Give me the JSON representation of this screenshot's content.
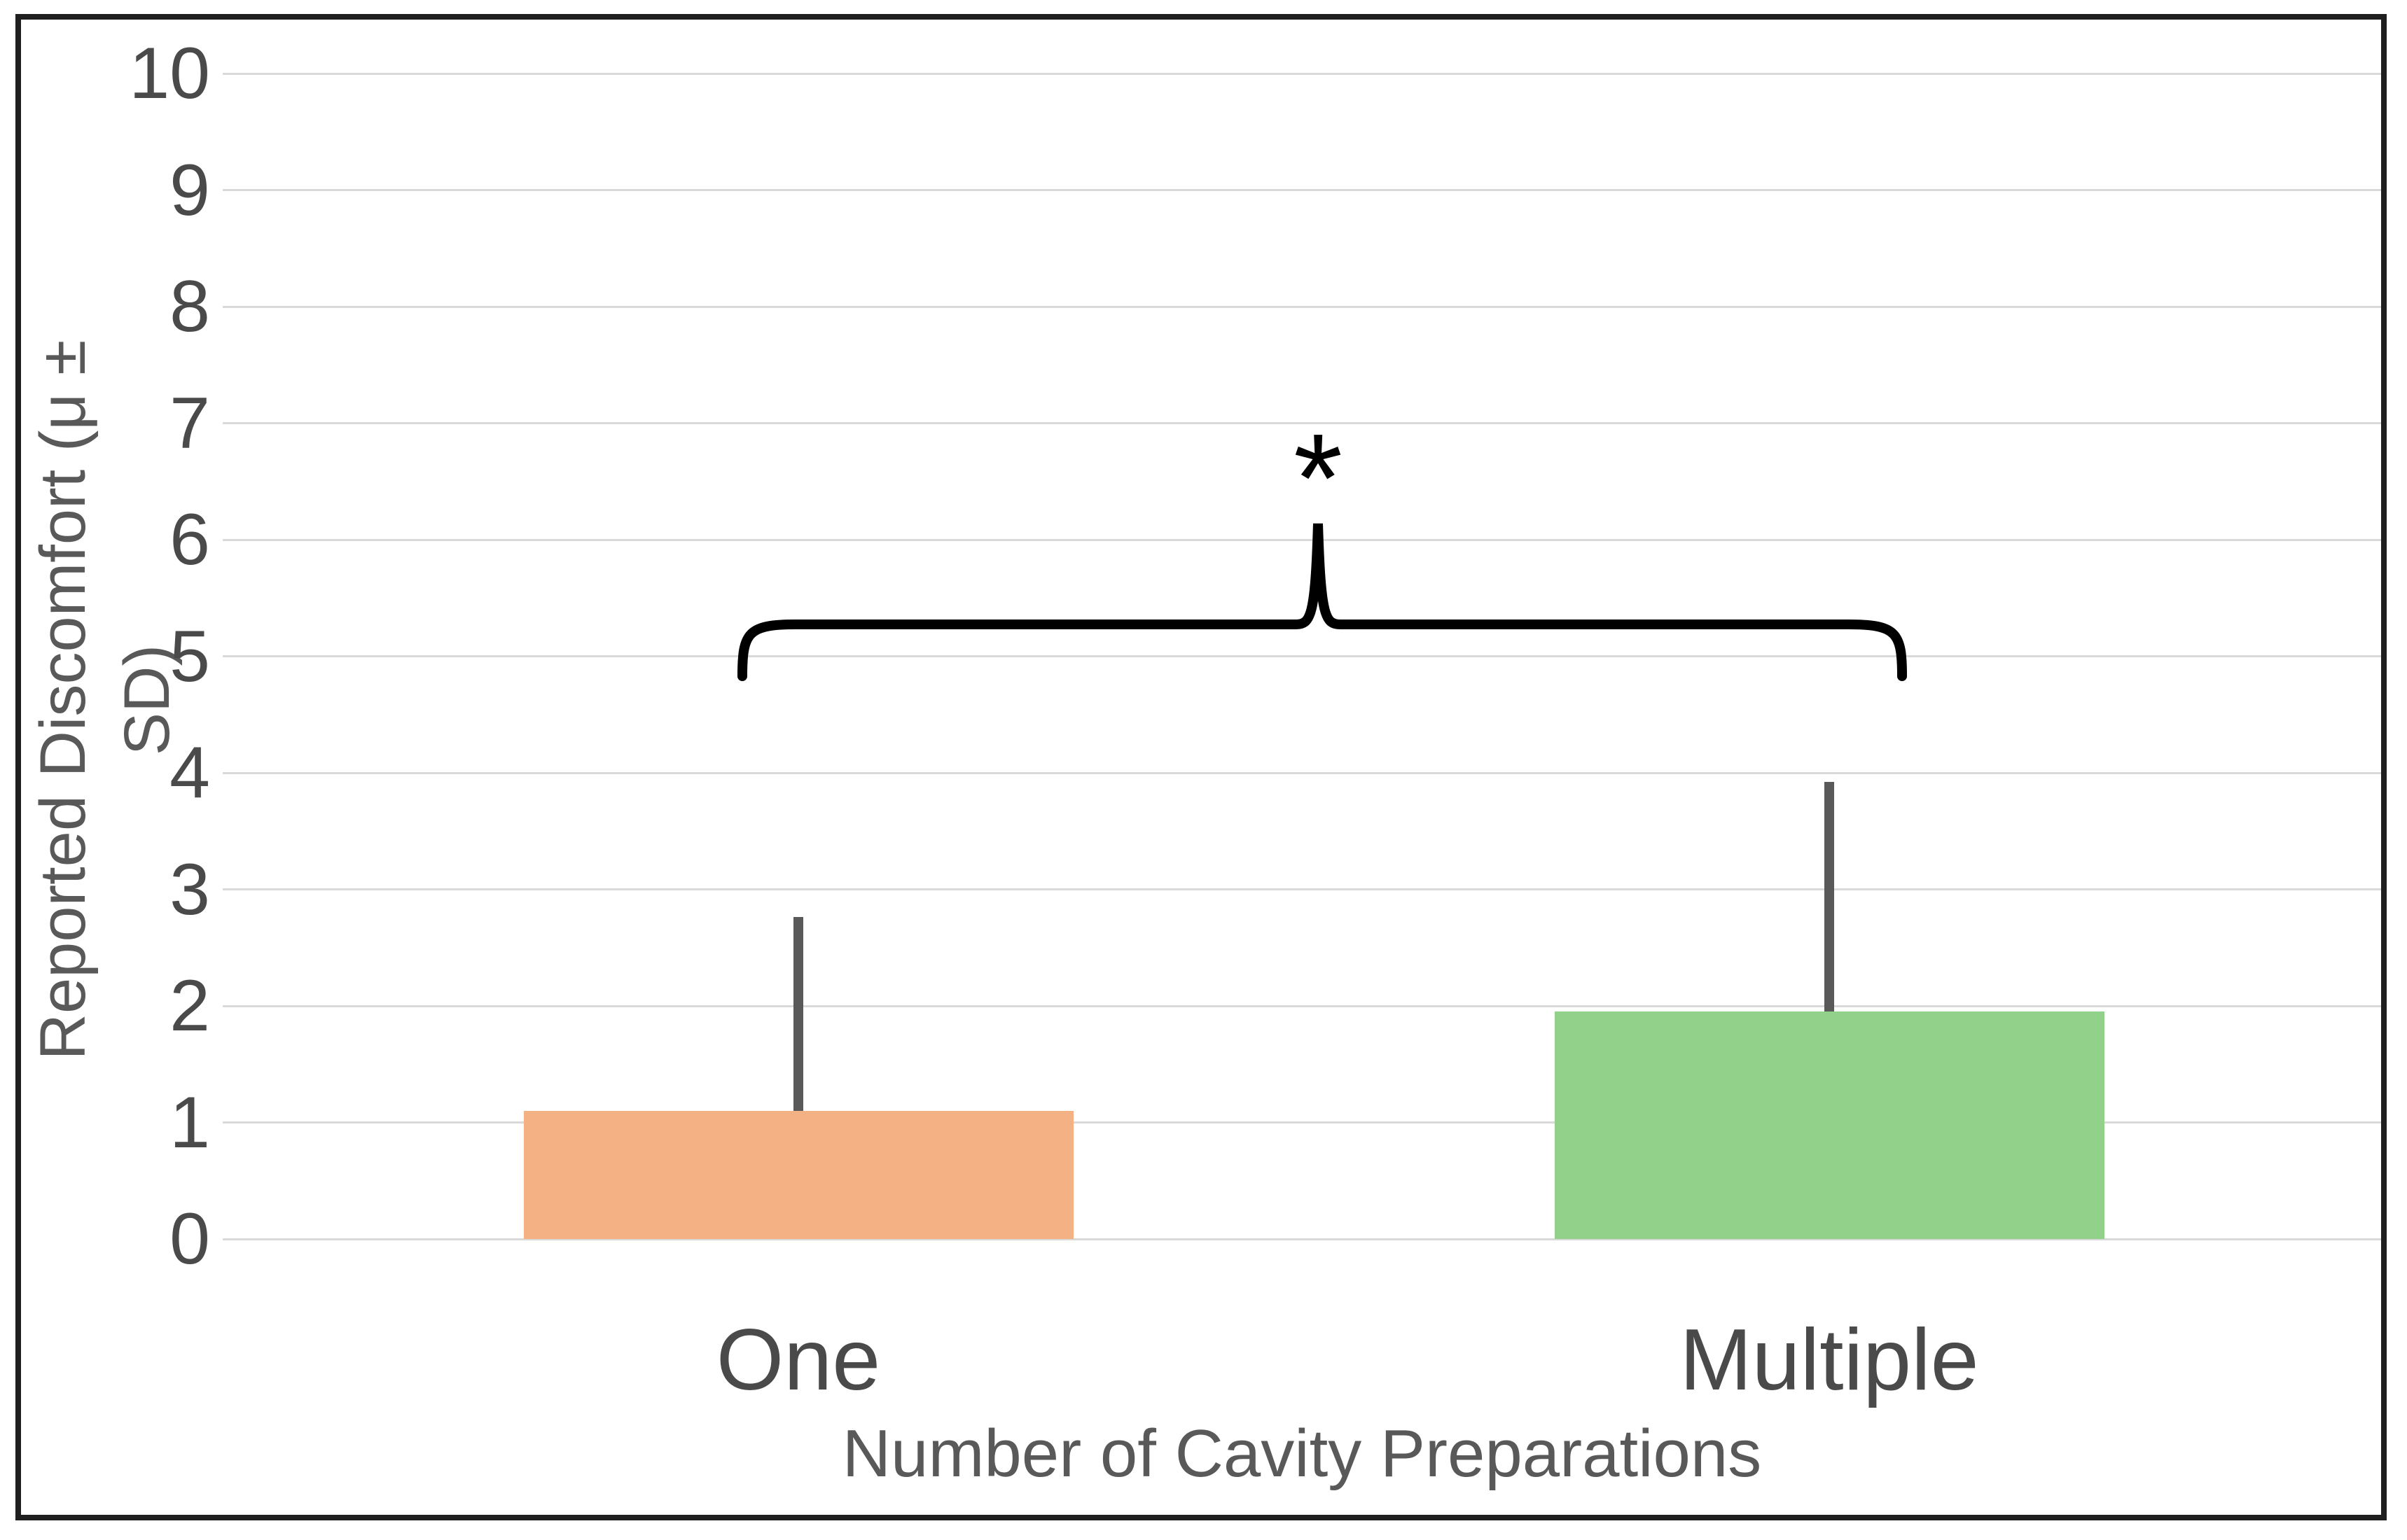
{
  "chart_data": {
    "type": "bar",
    "title": "",
    "categories": [
      "One",
      "Multiple"
    ],
    "values": [
      1.1,
      1.95
    ],
    "error_sd": [
      1.66,
      1.97
    ],
    "xlabel": "Number of Cavity Preparations",
    "ylabel": "Reported Discomfort (μ ± SD)",
    "ylim": [
      0,
      10
    ],
    "yticks": [
      0,
      1,
      2,
      3,
      4,
      5,
      6,
      7,
      8,
      9,
      10
    ],
    "grid": true,
    "legend": false,
    "bar_colors": [
      "#F4B183",
      "#92D189"
    ],
    "error_bar_color": "#595959",
    "gridline_color": "#D9D9D9",
    "text_color": "#4A4A4A",
    "significance": {
      "symbol": "*",
      "between": [
        "One",
        "Multiple"
      ],
      "bracket": "curly"
    }
  }
}
